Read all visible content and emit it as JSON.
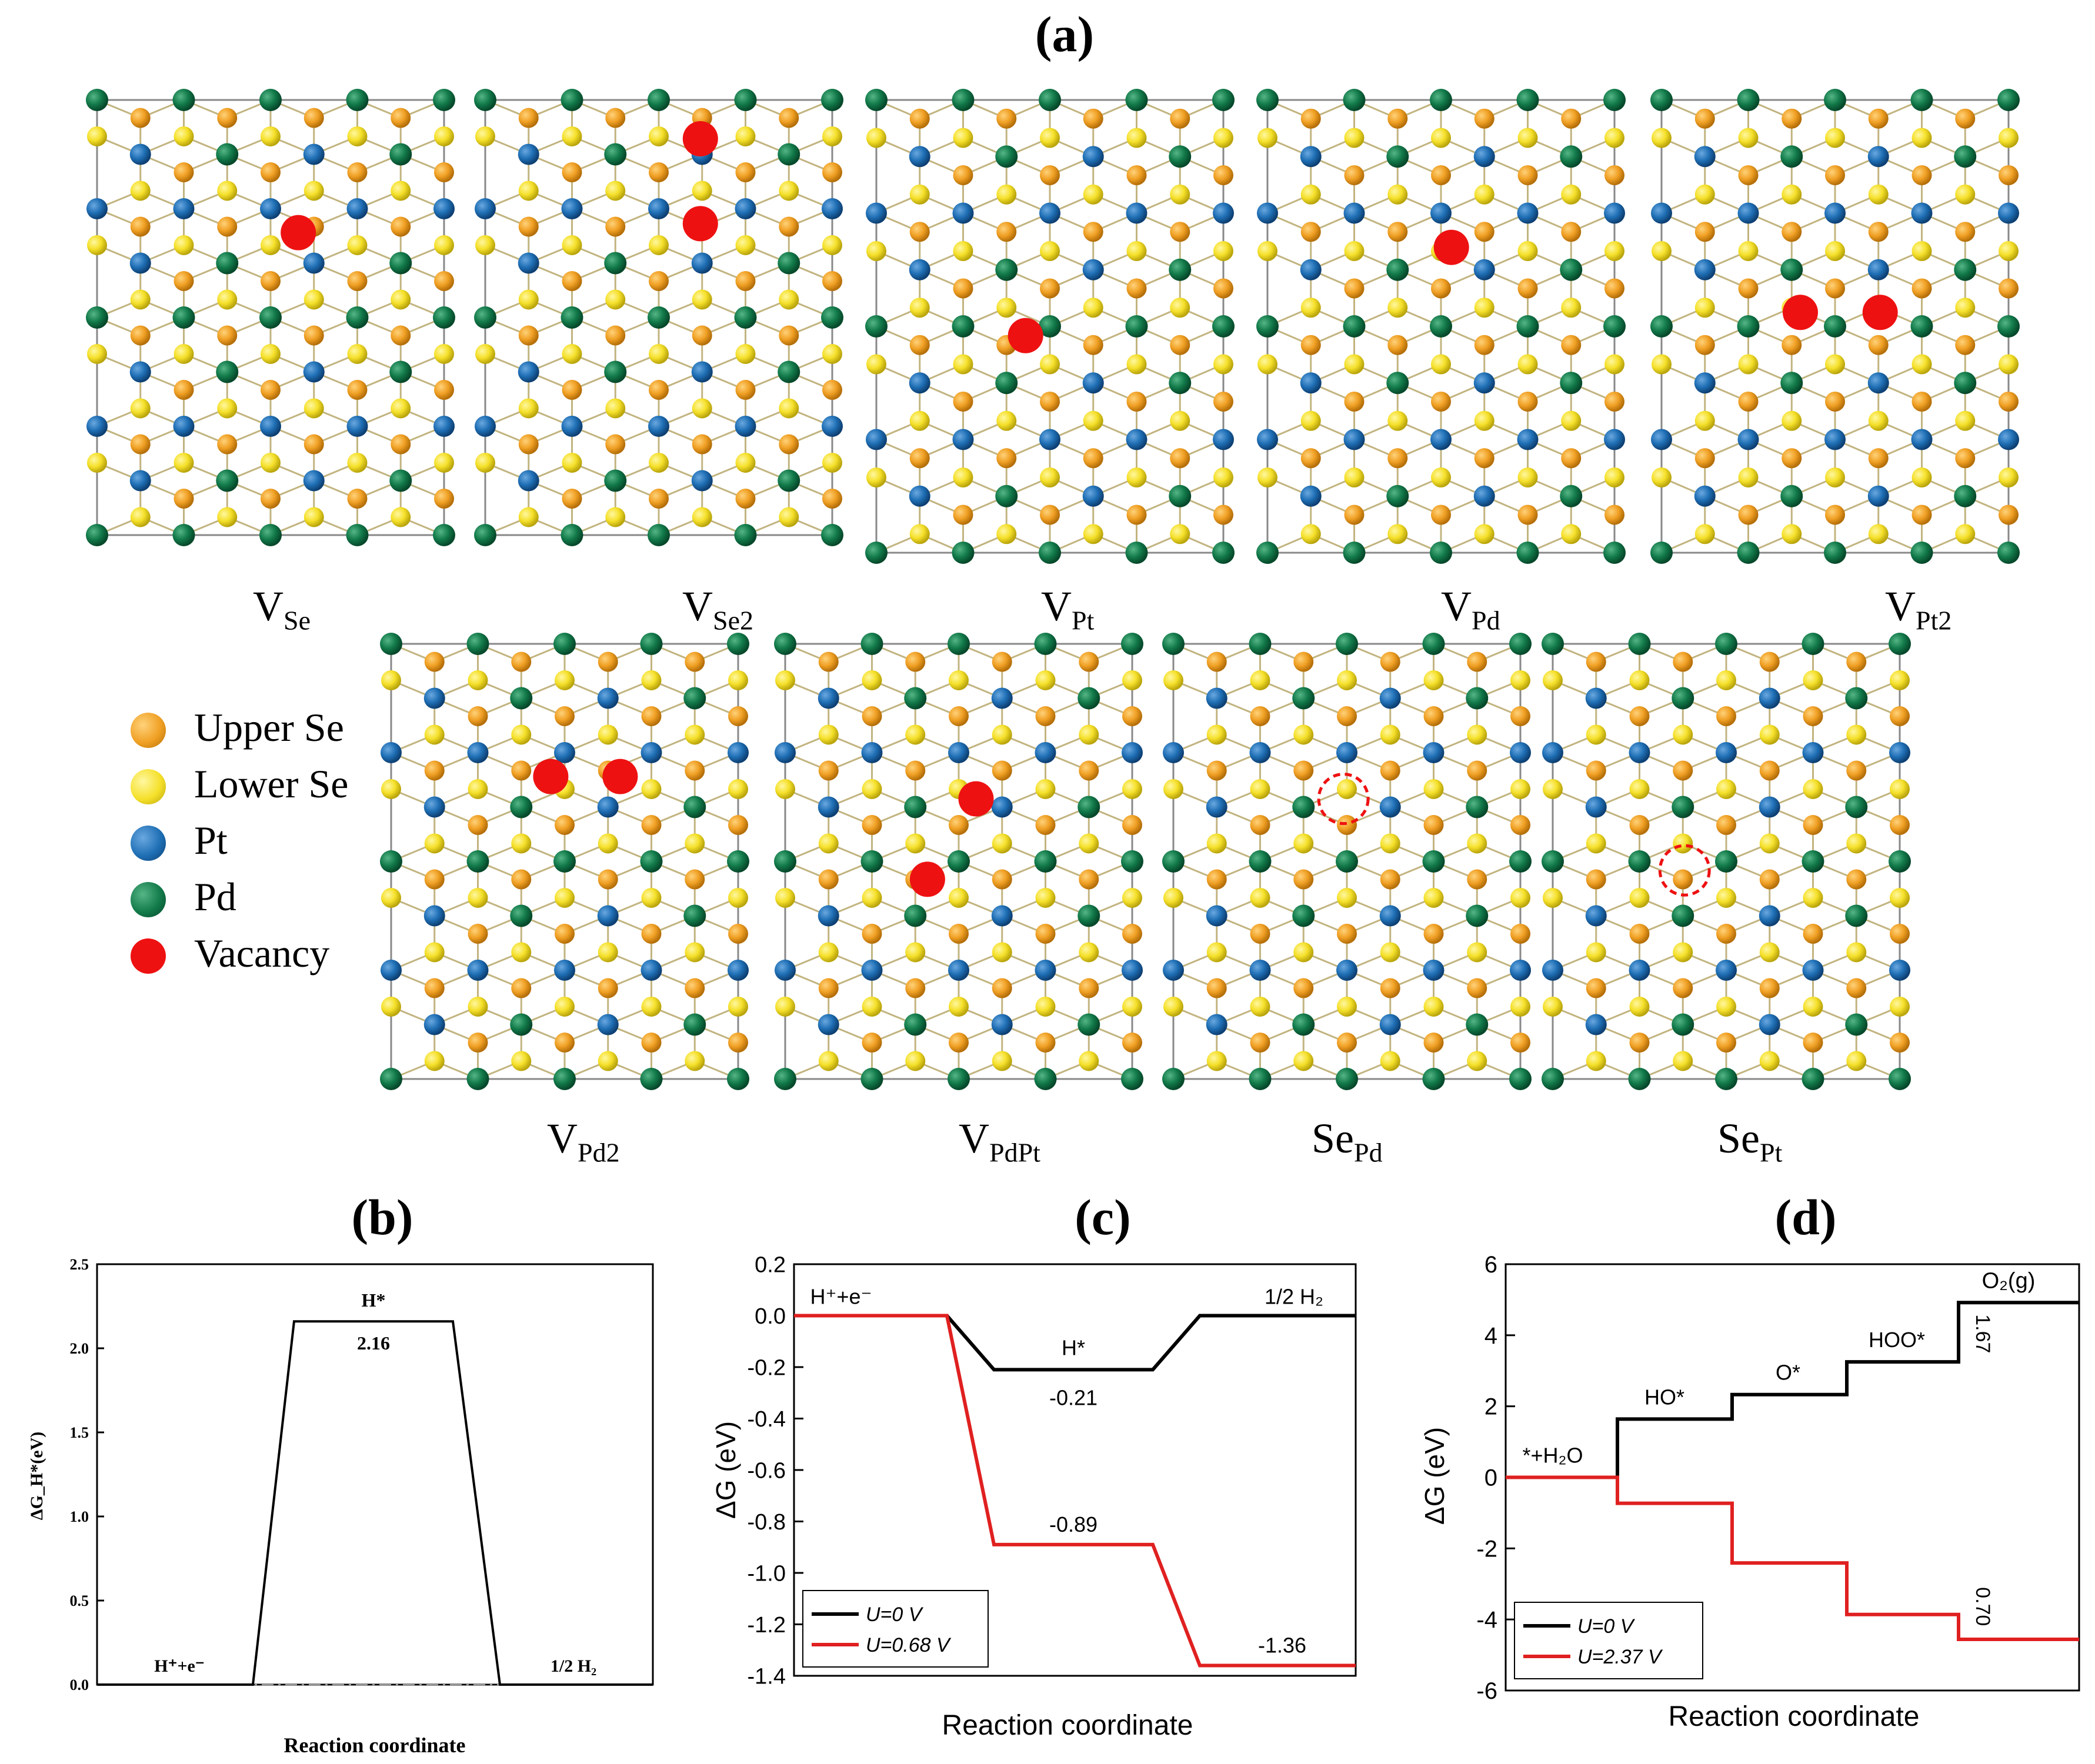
{
  "figure": {
    "label_a": "(a)",
    "label_b": "(b)",
    "label_c": "(c)",
    "label_d": "(d)"
  },
  "panels": [
    {
      "base": "V",
      "sub": "Se"
    },
    {
      "base": "V",
      "sub": "Se2"
    },
    {
      "base": "V",
      "sub": "Pt"
    },
    {
      "base": "V",
      "sub": "Pd"
    },
    {
      "base": "V",
      "sub": "Pt2"
    },
    {
      "base": "V",
      "sub": "Pd2"
    },
    {
      "base": "V",
      "sub": "PdPt"
    },
    {
      "base": "Se",
      "sub": "Pd"
    },
    {
      "base": "Se",
      "sub": "Pt"
    }
  ],
  "legend": [
    {
      "label": "Upper Se",
      "color": "#f0a024"
    },
    {
      "label": "Lower Se",
      "color": "#f5e02a"
    },
    {
      "label": "Pt",
      "color": "#1f6fb5"
    },
    {
      "label": "Pd",
      "color": "#127a4a"
    },
    {
      "label": "Vacancy",
      "color": "#ee1111"
    }
  ],
  "colors": {
    "upper_se": "#f0a024",
    "lower_se": "#f5e02a",
    "pt": "#1f6fb5",
    "pd": "#127a4a",
    "vacancy": "#ee1111",
    "bond": "#b8a86a"
  },
  "chart_data": [
    {
      "id": "b",
      "type": "line",
      "title": "(b)",
      "xlabel": "Reaction coordinate",
      "ylabel": "ΔG_H*(eV)",
      "ylim": [
        0,
        2.5
      ],
      "yticks": [
        "0.0",
        "0.5",
        "1.0",
        "1.5",
        "2.0",
        "2.5"
      ],
      "states": [
        "H⁺+e⁻",
        "H*",
        "1/2 H₂"
      ],
      "series": [
        {
          "name": "ΔG",
          "values": [
            0.0,
            2.16,
            0.0
          ]
        }
      ],
      "annotations": [
        "H*",
        "2.16",
        "H⁺+e⁻",
        "1/2 H₂"
      ]
    },
    {
      "id": "c",
      "type": "line",
      "title": "(c)",
      "xlabel": "Reaction coordinate",
      "ylabel": "ΔG (eV)",
      "ylim": [
        -1.4,
        0.2
      ],
      "yticks": [
        "0.2",
        "0.0",
        "-0.2",
        "-0.4",
        "-0.6",
        "-0.8",
        "-1.0",
        "-1.2",
        "-1.4"
      ],
      "states": [
        "H⁺+e⁻",
        "H*",
        "1/2 H₂"
      ],
      "series": [
        {
          "name": "U=0 V",
          "color": "#000000",
          "values": [
            0.0,
            -0.21,
            0.0
          ]
        },
        {
          "name": "U=0.68 V",
          "color": "#e02020",
          "values": [
            0.0,
            -0.89,
            -1.36
          ]
        }
      ],
      "annotations": [
        "H⁺+e⁻",
        "H*",
        "1/2 H₂",
        "-0.21",
        "-0.89",
        "-1.36"
      ]
    },
    {
      "id": "d",
      "type": "line",
      "title": "(d)",
      "xlabel": "Reaction coordinate",
      "ylabel": "ΔG (eV)",
      "ylim": [
        -6,
        6
      ],
      "yticks": [
        "6",
        "4",
        "2",
        "0",
        "-2",
        "-4",
        "-6"
      ],
      "states": [
        "*+H₂O",
        "HO*",
        "O*",
        "HOO*",
        "O₂(g)"
      ],
      "series": [
        {
          "name": "U=0 V",
          "color": "#000000",
          "values": [
            0.0,
            1.64,
            2.33,
            3.25,
            4.92
          ]
        },
        {
          "name": "U=2.37 V",
          "color": "#e02020",
          "values": [
            0.0,
            -0.73,
            -2.41,
            -3.86,
            -4.56
          ]
        }
      ],
      "annotations": [
        "*+H₂O",
        "HO*",
        "O*",
        "HOO*",
        "O₂(g)",
        "1.67",
        "0.70"
      ]
    }
  ]
}
